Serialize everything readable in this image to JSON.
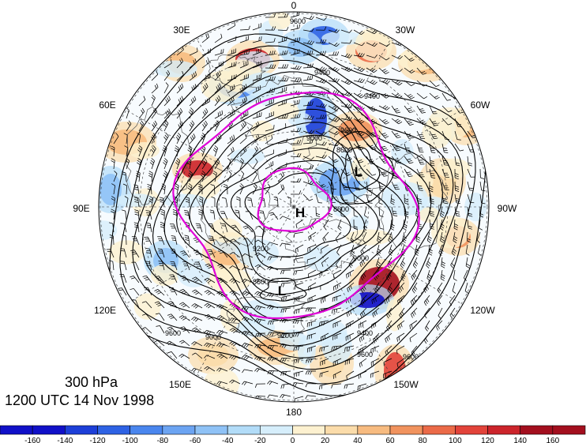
{
  "map": {
    "level": "300 hPa",
    "datetime": "1200 UTC 14 Nov 1998",
    "longitude_labels": {
      "lon_0": "0",
      "lon_30w": "30W",
      "lon_60w": "60W",
      "lon_90w": "90W",
      "lon_120w": "120W",
      "lon_150w": "150W",
      "lon_180": "180",
      "lon_150e": "150E",
      "lon_120e": "120E",
      "lon_90e": "90E",
      "lon_60e": "60E",
      "lon_30e": "30E"
    },
    "pressure_centers": {
      "high": "H",
      "low_a": "L",
      "low_b": "L"
    },
    "contour_labels": [
      "9600",
      "9400",
      "9400",
      "9600",
      "9000",
      "8600",
      "8600",
      "9200",
      "8600",
      "9000",
      "9600",
      "9000",
      "9200",
      "9400",
      "9600",
      "9600"
    ],
    "colorbar": {
      "ticks": [
        "-160",
        "-140",
        "-120",
        "-100",
        "-80",
        "-60",
        "-40",
        "-20",
        "0",
        "20",
        "40",
        "60",
        "80",
        "100",
        "120",
        "140",
        "160"
      ],
      "colors": [
        "#1010c8",
        "#1d3fd8",
        "#2e62e4",
        "#4a86ee",
        "#6ca4f2",
        "#8fc2f6",
        "#b2dcf8",
        "#d6eefb",
        "#ffffff",
        "#fdf1d0",
        "#fbdcaa",
        "#f7bb80",
        "#f1935e",
        "#eb6a48",
        "#e2433a",
        "#cc242b",
        "#a30f1e"
      ]
    },
    "line_colors": {
      "contour": "#000000",
      "highlight": "#e000d8"
    }
  }
}
